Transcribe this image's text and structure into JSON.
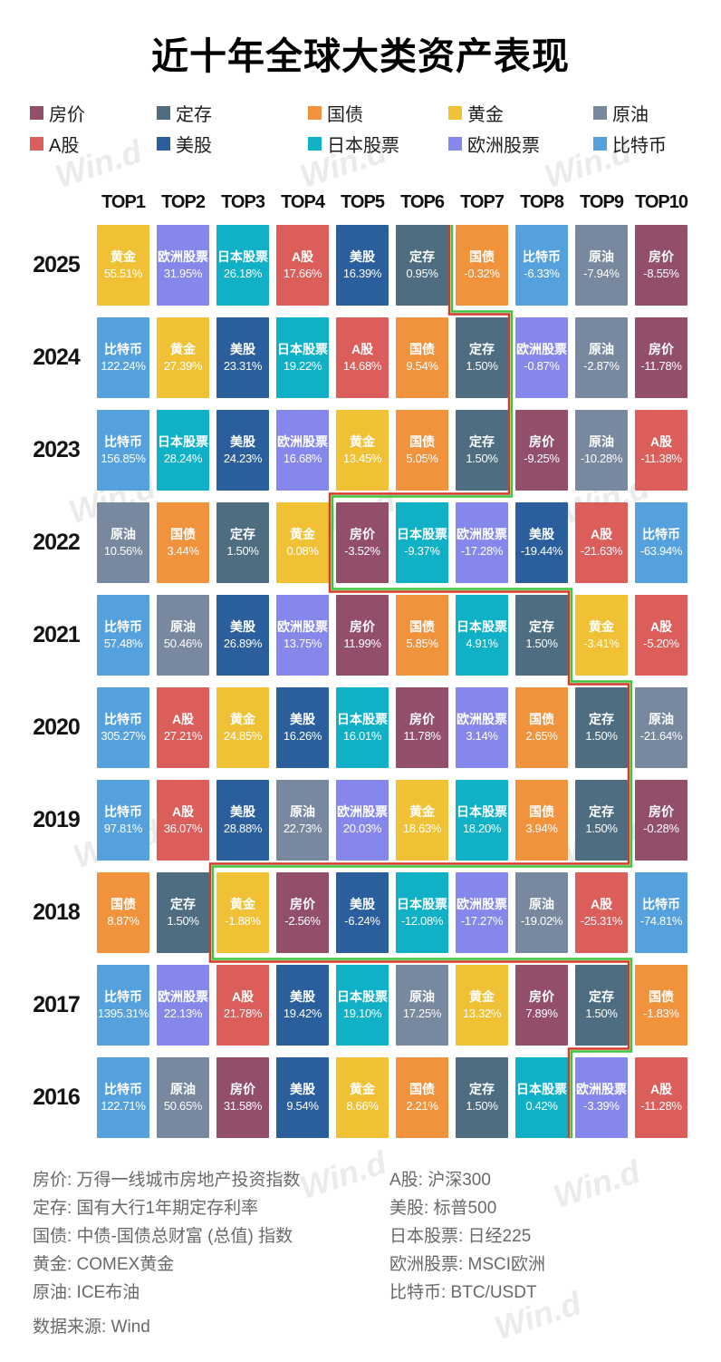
{
  "title": "近十年全球大类资产表现",
  "watermark": {
    "text": "Win.d"
  },
  "legend": [
    {
      "id": "house",
      "label": "房价",
      "color": "#934F6A"
    },
    {
      "id": "deposit",
      "label": "定存",
      "color": "#4E6D80"
    },
    {
      "id": "bond",
      "label": "国债",
      "color": "#F1923D"
    },
    {
      "id": "gold",
      "label": "黄金",
      "color": "#F0C135"
    },
    {
      "id": "oil",
      "label": "原油",
      "color": "#78889E"
    },
    {
      "id": "ashare",
      "label": "A股",
      "color": "#DB5E5B"
    },
    {
      "id": "usstock",
      "label": "美股",
      "color": "#2B5E9C"
    },
    {
      "id": "jpstock",
      "label": "日本股票",
      "color": "#10B1C6"
    },
    {
      "id": "eustock",
      "label": "欧洲股票",
      "color": "#8588EA"
    },
    {
      "id": "bitcoin",
      "label": "比特币",
      "color": "#55A1DD"
    }
  ],
  "chart_data": {
    "type": "table",
    "title": "近十年全球大类资产表现",
    "columns": [
      "TOP1",
      "TOP2",
      "TOP3",
      "TOP4",
      "TOP5",
      "TOP6",
      "TOP7",
      "TOP8",
      "TOP9",
      "TOP10"
    ],
    "rows": [
      {
        "year": "2025",
        "cells": [
          {
            "asset": "黄金",
            "value": "55.51%"
          },
          {
            "asset": "欧洲股票",
            "value": "31.95%"
          },
          {
            "asset": "日本股票",
            "value": "26.18%"
          },
          {
            "asset": "A股",
            "value": "17.66%"
          },
          {
            "asset": "美股",
            "value": "16.39%"
          },
          {
            "asset": "定存",
            "value": "0.95%"
          },
          {
            "asset": "国债",
            "value": "-0.32%"
          },
          {
            "asset": "比特币",
            "value": "-6.33%"
          },
          {
            "asset": "原油",
            "value": "-7.94%"
          },
          {
            "asset": "房价",
            "value": "-8.55%"
          }
        ]
      },
      {
        "year": "2024",
        "cells": [
          {
            "asset": "比特币",
            "value": "122.24%"
          },
          {
            "asset": "黄金",
            "value": "27.39%"
          },
          {
            "asset": "美股",
            "value": "23.31%"
          },
          {
            "asset": "日本股票",
            "value": "19.22%"
          },
          {
            "asset": "A股",
            "value": "14.68%"
          },
          {
            "asset": "国债",
            "value": "9.54%"
          },
          {
            "asset": "定存",
            "value": "1.50%"
          },
          {
            "asset": "欧洲股票",
            "value": "-0.87%"
          },
          {
            "asset": "原油",
            "value": "-2.87%"
          },
          {
            "asset": "房价",
            "value": "-11.78%"
          }
        ]
      },
      {
        "year": "2023",
        "cells": [
          {
            "asset": "比特币",
            "value": "156.85%"
          },
          {
            "asset": "日本股票",
            "value": "28.24%"
          },
          {
            "asset": "美股",
            "value": "24.23%"
          },
          {
            "asset": "欧洲股票",
            "value": "16.68%"
          },
          {
            "asset": "黄金",
            "value": "13.45%"
          },
          {
            "asset": "国债",
            "value": "5.05%"
          },
          {
            "asset": "定存",
            "value": "1.50%"
          },
          {
            "asset": "房价",
            "value": "-9.25%"
          },
          {
            "asset": "原油",
            "value": "-10.28%"
          },
          {
            "asset": "A股",
            "value": "-11.38%"
          }
        ]
      },
      {
        "year": "2022",
        "cells": [
          {
            "asset": "原油",
            "value": "10.56%"
          },
          {
            "asset": "国债",
            "value": "3.44%"
          },
          {
            "asset": "定存",
            "value": "1.50%"
          },
          {
            "asset": "黄金",
            "value": "0.08%"
          },
          {
            "asset": "房价",
            "value": "-3.52%"
          },
          {
            "asset": "日本股票",
            "value": "-9.37%"
          },
          {
            "asset": "欧洲股票",
            "value": "-17.28%"
          },
          {
            "asset": "美股",
            "value": "-19.44%"
          },
          {
            "asset": "A股",
            "value": "-21.63%"
          },
          {
            "asset": "比特币",
            "value": "-63.94%"
          }
        ]
      },
      {
        "year": "2021",
        "cells": [
          {
            "asset": "比特币",
            "value": "57.48%"
          },
          {
            "asset": "原油",
            "value": "50.46%"
          },
          {
            "asset": "美股",
            "value": "26.89%"
          },
          {
            "asset": "欧洲股票",
            "value": "13.75%"
          },
          {
            "asset": "房价",
            "value": "11.99%"
          },
          {
            "asset": "国债",
            "value": "5.85%"
          },
          {
            "asset": "日本股票",
            "value": "4.91%"
          },
          {
            "asset": "定存",
            "value": "1.50%"
          },
          {
            "asset": "黄金",
            "value": "-3.41%"
          },
          {
            "asset": "A股",
            "value": "-5.20%"
          }
        ]
      },
      {
        "year": "2020",
        "cells": [
          {
            "asset": "比特币",
            "value": "305.27%"
          },
          {
            "asset": "A股",
            "value": "27.21%"
          },
          {
            "asset": "黄金",
            "value": "24.85%"
          },
          {
            "asset": "美股",
            "value": "16.26%"
          },
          {
            "asset": "日本股票",
            "value": "16.01%"
          },
          {
            "asset": "房价",
            "value": "11.78%"
          },
          {
            "asset": "欧洲股票",
            "value": "3.14%"
          },
          {
            "asset": "国债",
            "value": "2.65%"
          },
          {
            "asset": "定存",
            "value": "1.50%"
          },
          {
            "asset": "原油",
            "value": "-21.64%"
          }
        ]
      },
      {
        "year": "2019",
        "cells": [
          {
            "asset": "比特币",
            "value": "97.81%"
          },
          {
            "asset": "A股",
            "value": "36.07%"
          },
          {
            "asset": "美股",
            "value": "28.88%"
          },
          {
            "asset": "原油",
            "value": "22.73%"
          },
          {
            "asset": "欧洲股票",
            "value": "20.03%"
          },
          {
            "asset": "黄金",
            "value": "18.63%"
          },
          {
            "asset": "日本股票",
            "value": "18.20%"
          },
          {
            "asset": "国债",
            "value": "3.94%"
          },
          {
            "asset": "定存",
            "value": "1.50%"
          },
          {
            "asset": "房价",
            "value": "-0.28%"
          }
        ]
      },
      {
        "year": "2018",
        "cells": [
          {
            "asset": "国债",
            "value": "8.87%"
          },
          {
            "asset": "定存",
            "value": "1.50%"
          },
          {
            "asset": "黄金",
            "value": "-1.88%"
          },
          {
            "asset": "房价",
            "value": "-2.56%"
          },
          {
            "asset": "美股",
            "value": "-6.24%"
          },
          {
            "asset": "日本股票",
            "value": "-12.08%"
          },
          {
            "asset": "欧洲股票",
            "value": "-17.27%"
          },
          {
            "asset": "原油",
            "value": "-19.02%"
          },
          {
            "asset": "A股",
            "value": "-25.31%"
          },
          {
            "asset": "比特币",
            "value": "-74.81%"
          }
        ]
      },
      {
        "year": "2017",
        "cells": [
          {
            "asset": "比特币",
            "value": "1395.31%"
          },
          {
            "asset": "欧洲股票",
            "value": "22.13%"
          },
          {
            "asset": "A股",
            "value": "21.78%"
          },
          {
            "asset": "美股",
            "value": "19.42%"
          },
          {
            "asset": "日本股票",
            "value": "19.10%"
          },
          {
            "asset": "原油",
            "value": "17.25%"
          },
          {
            "asset": "黄金",
            "value": "13.32%"
          },
          {
            "asset": "房价",
            "value": "7.89%"
          },
          {
            "asset": "定存",
            "value": "1.50%"
          },
          {
            "asset": "国债",
            "value": "-1.83%"
          }
        ]
      },
      {
        "year": "2016",
        "cells": [
          {
            "asset": "比特币",
            "value": "122.71%"
          },
          {
            "asset": "原油",
            "value": "50.65%"
          },
          {
            "asset": "房价",
            "value": "31.58%"
          },
          {
            "asset": "美股",
            "value": "9.54%"
          },
          {
            "asset": "黄金",
            "value": "8.66%"
          },
          {
            "asset": "国债",
            "value": "2.21%"
          },
          {
            "asset": "定存",
            "value": "1.50%"
          },
          {
            "asset": "日本股票",
            "value": "0.42%"
          },
          {
            "asset": "欧洲股票",
            "value": "-3.39%"
          },
          {
            "asset": "A股",
            "value": "-11.28%"
          }
        ]
      }
    ],
    "divider": {
      "meaning": "stepped double line separating positive returns (left) from negative returns (right)",
      "after_rank_per_year": [
        6,
        7,
        7,
        4,
        8,
        9,
        9,
        2,
        9,
        8
      ],
      "red": "#D23B2A",
      "green": "#3FC43F"
    }
  },
  "footnotes": {
    "left": [
      "房价: 万得一线城市房地产投资指数",
      "定存: 国有大行1年期定存利率",
      "国债: 中债-国债总财富 (总值) 指数",
      "黄金: COMEX黄金",
      "原油: ICE布油"
    ],
    "right": [
      "A股: 沪深300",
      "美股: 标普500",
      "日本股票: 日经225",
      "欧洲股票: MSCI欧洲",
      "比特币: BTC/USDT"
    ],
    "source": "数据来源: Wind"
  }
}
